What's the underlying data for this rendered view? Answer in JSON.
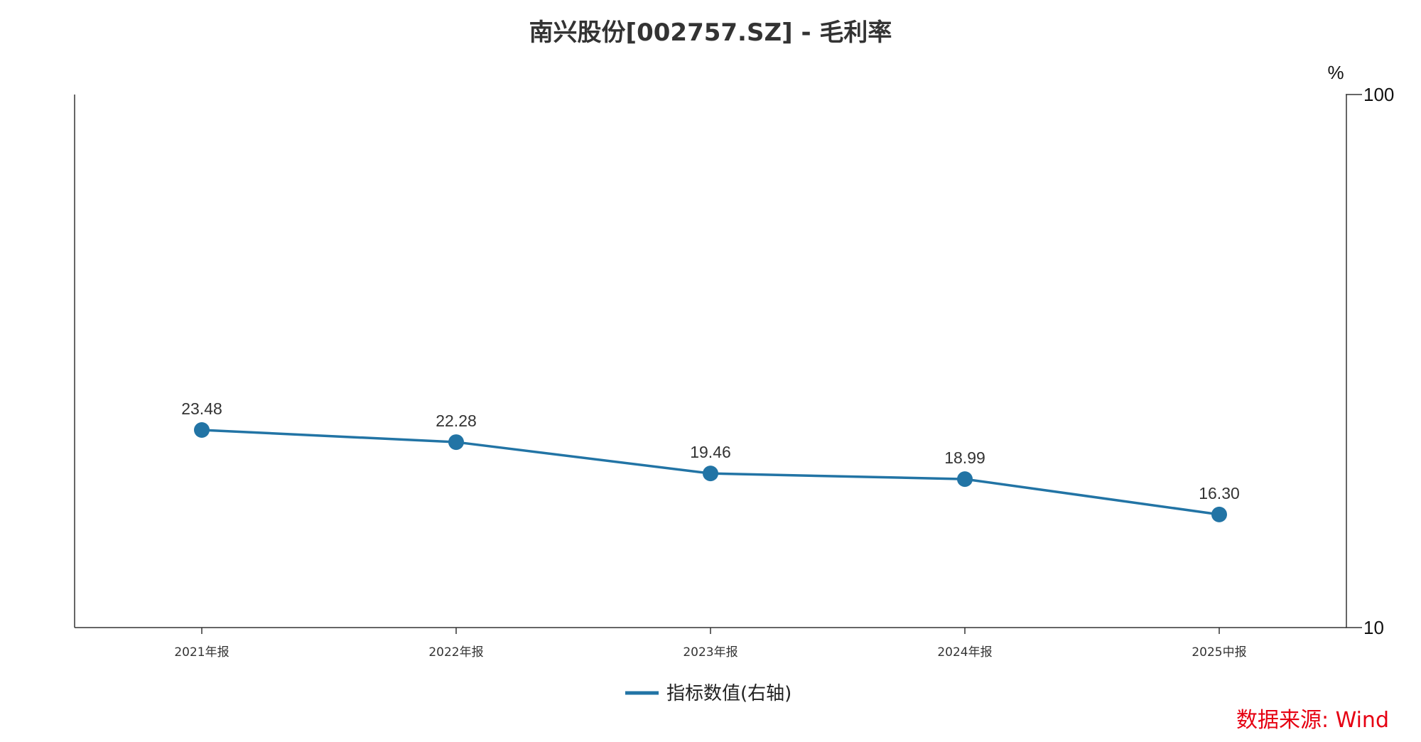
{
  "chart_data": {
    "type": "line",
    "title": "南兴股份[002757.SZ] - 毛利率",
    "categories": [
      "2021年报",
      "2022年报",
      "2023年报",
      "2024年报",
      "2025中报"
    ],
    "series": [
      {
        "name": "指标数值(右轴)",
        "values": [
          23.48,
          22.28,
          19.46,
          18.99,
          16.3
        ],
        "labels": [
          "23.48",
          "22.28",
          "19.46",
          "18.99",
          "16.30"
        ]
      }
    ],
    "y_axis": {
      "side": "right",
      "scale": "log",
      "ylim": [
        10,
        100
      ],
      "unit": "%",
      "ticks": [
        {
          "value": 100,
          "label": "100"
        },
        {
          "value": 10,
          "label": "10"
        }
      ]
    },
    "legend_position": "bottom-center",
    "grid": false,
    "source": "数据来源: Wind",
    "colors": {
      "series": "#2274a5",
      "axis": "#333333",
      "source": "#e60012"
    }
  }
}
